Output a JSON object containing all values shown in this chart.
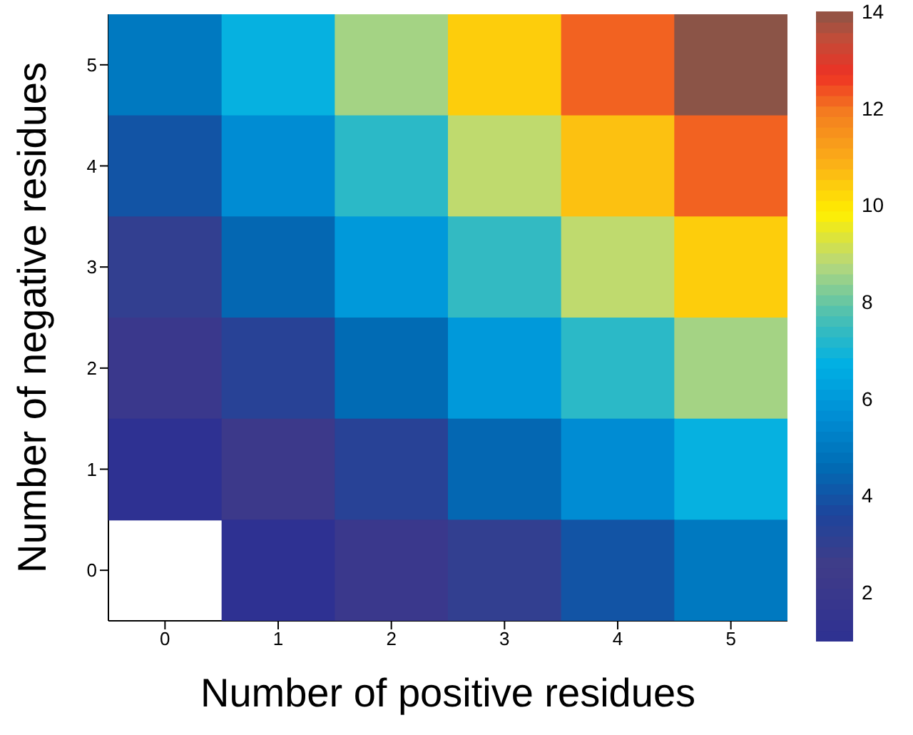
{
  "chart_data": {
    "type": "heatmap",
    "xlabel": "Number of positive residues",
    "ylabel": "Number of negative residues",
    "categories": [
      "0",
      "1",
      "2",
      "3",
      "4",
      "5"
    ],
    "y_categories": [
      "5",
      "4",
      "3",
      "2",
      "1",
      "0"
    ],
    "cells": [
      [
        5,
        6.8,
        8.6,
        10.4,
        12.2,
        14
      ],
      [
        4,
        5.6,
        7.3,
        8.9,
        10.6,
        12.2
      ],
      [
        3,
        4.5,
        6.0,
        7.4,
        8.9,
        10.4
      ],
      [
        2,
        3.3,
        4.6,
        6.0,
        7.3,
        8.6
      ],
      [
        1,
        2.2,
        3.3,
        4.5,
        5.6,
        6.8
      ],
      [
        null,
        1,
        2,
        3,
        4,
        5
      ]
    ],
    "clim": [
      1,
      14
    ],
    "cticks": [
      2,
      4,
      6,
      8,
      10,
      12,
      14
    ]
  }
}
